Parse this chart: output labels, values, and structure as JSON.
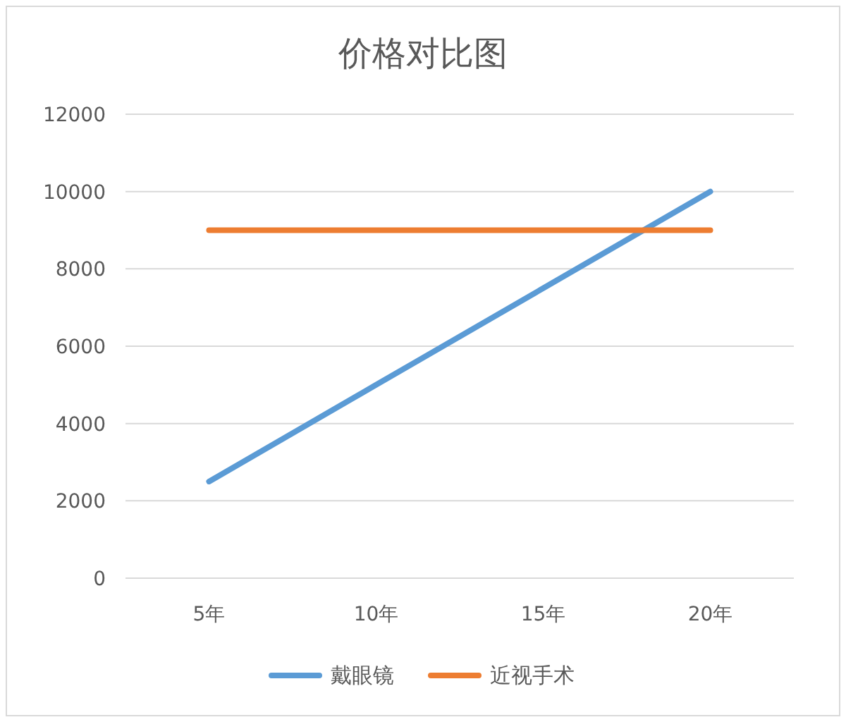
{
  "chart_data": {
    "type": "line",
    "title": "价格对比图",
    "categories": [
      "5年",
      "10年",
      "15年",
      "20年"
    ],
    "series": [
      {
        "name": "戴眼镜",
        "color": "#5b9bd5",
        "values": [
          2500,
          5000,
          7500,
          10000
        ]
      },
      {
        "name": "近视手术",
        "color": "#ed7d31",
        "values": [
          9000,
          9000,
          9000,
          9000
        ]
      }
    ],
    "ylim": [
      0,
      12000
    ],
    "yticks": [
      0,
      2000,
      4000,
      6000,
      8000,
      10000,
      12000
    ],
    "grid": "y",
    "legend": "bottom",
    "marker": "none",
    "line_style": "solid"
  }
}
